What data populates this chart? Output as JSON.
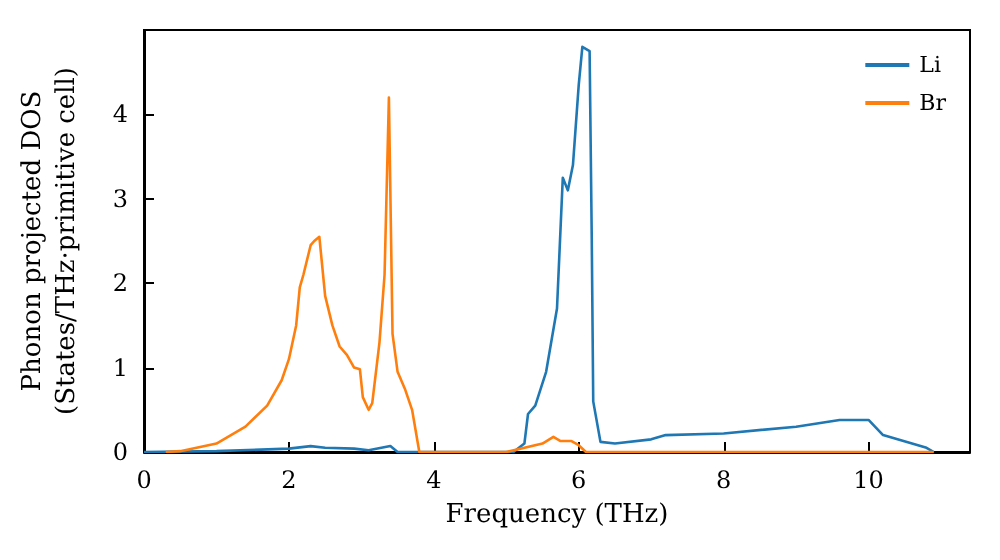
{
  "chart_data": {
    "type": "line",
    "xlabel": "Frequency (THz)",
    "ylabel": "Phonon projected DOS\n(States/THz·primitive cell)",
    "xlim": [
      0,
      11.4
    ],
    "xticks": [
      0,
      2,
      4,
      6,
      8,
      10
    ],
    "ylim": [
      0,
      5
    ],
    "yticks": [
      0,
      1,
      2,
      3,
      4
    ],
    "grid": false,
    "legend": "top right",
    "marker": "none",
    "line_style": "solid",
    "series": [
      {
        "name": "Li",
        "color": "#1f77b4",
        "x": [
          0,
          1,
          2,
          2.3,
          2.5,
          2.9,
          3.1,
          3.4,
          3.5,
          5.1,
          5.25,
          5.3,
          5.4,
          5.55,
          5.7,
          5.78,
          5.85,
          5.92,
          6.0,
          6.05,
          6.15,
          6.18,
          6.2,
          6.3,
          6.5,
          7.0,
          7.2,
          8,
          9,
          9.6,
          10.0,
          10.2,
          10.8,
          10.9
        ],
        "values": [
          0,
          0.01,
          0.04,
          0.07,
          0.05,
          0.04,
          0.02,
          0.07,
          0,
          0,
          0.1,
          0.45,
          0.55,
          0.95,
          1.7,
          3.25,
          3.1,
          3.4,
          4.35,
          4.8,
          4.75,
          2.5,
          0.6,
          0.12,
          0.1,
          0.15,
          0.2,
          0.22,
          0.3,
          0.38,
          0.38,
          0.2,
          0.05,
          0
        ]
      },
      {
        "name": "Br",
        "color": "#ff7f0e",
        "x": [
          0.3,
          0.5,
          1.0,
          1.4,
          1.7,
          1.9,
          2.0,
          2.1,
          2.15,
          2.2,
          2.3,
          2.35,
          2.42,
          2.5,
          2.6,
          2.7,
          2.8,
          2.9,
          2.98,
          3.02,
          3.1,
          3.15,
          3.25,
          3.32,
          3.38,
          3.43,
          3.5,
          3.6,
          3.7,
          3.8,
          5.0,
          5.5,
          5.65,
          5.75,
          5.9,
          6.0,
          6.1,
          10.9
        ],
        "values": [
          0,
          0.01,
          0.1,
          0.3,
          0.55,
          0.85,
          1.1,
          1.5,
          1.95,
          2.1,
          2.45,
          2.5,
          2.55,
          1.85,
          1.5,
          1.25,
          1.15,
          1.0,
          0.98,
          0.65,
          0.5,
          0.58,
          1.3,
          2.1,
          4.2,
          1.4,
          0.95,
          0.75,
          0.5,
          0,
          0,
          0.1,
          0.18,
          0.13,
          0.13,
          0.08,
          0,
          0
        ]
      }
    ]
  }
}
